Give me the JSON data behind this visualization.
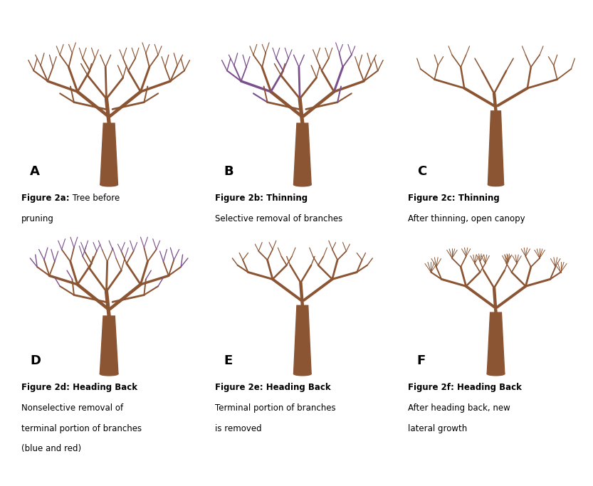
{
  "background": "#ffffff",
  "border_color": "#555555",
  "trunk_color": "#8B5533",
  "branch_color": "#8B5533",
  "purple_color": "#7B4F8B",
  "text_color": "#000000",
  "panel_labels": [
    "A",
    "B",
    "C",
    "D",
    "E",
    "F"
  ],
  "captions": [
    {
      "bold": "Figure 2a:",
      "normal": " Tree before\npruning"
    },
    {
      "bold": "Figure 2b: Thinning",
      "normal": "\nSelective removal of branches"
    },
    {
      "bold": "Figure 2c: Thinning",
      "normal": "\nAfter thinning, open canopy"
    },
    {
      "bold": "Figure 2d: Heading Back",
      "normal": "\nNonselective removal of\nterminal portion of branches\n(blue and red)"
    },
    {
      "bold": "Figure 2e: Heading Back",
      "normal": "\nTerminal portion of branches\nis removed"
    },
    {
      "bold": "Figure 2f: Heading Back",
      "normal": "\nAfter heading back, new\nlateral growth"
    }
  ]
}
